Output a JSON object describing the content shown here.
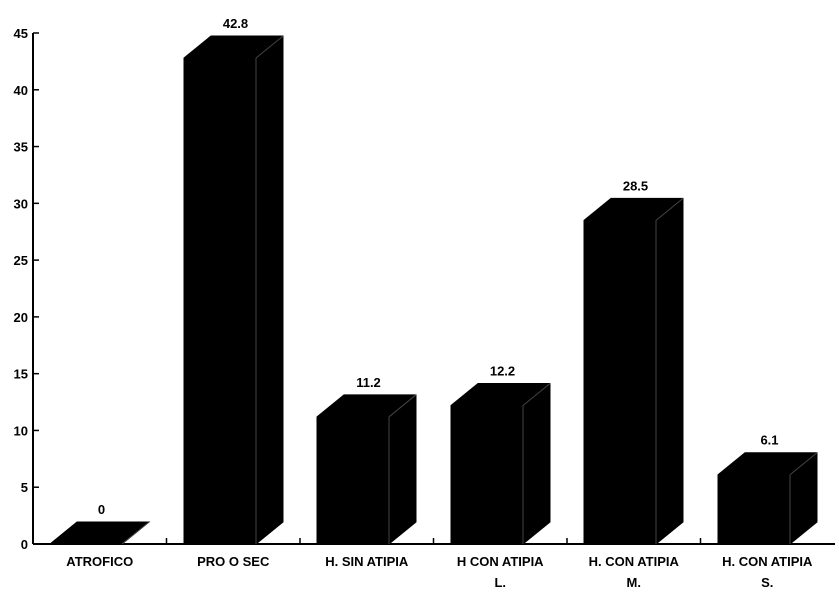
{
  "chart_data": {
    "type": "bar",
    "categories": [
      [
        "ATROFICO"
      ],
      [
        "PRO O SEC"
      ],
      [
        "H. SIN ATIPIA"
      ],
      [
        "H CON ATIPIA",
        "L."
      ],
      [
        "H. CON ATIPIA",
        "M."
      ],
      [
        "H. CON ATIPIA",
        "S."
      ]
    ],
    "values": [
      0,
      42.8,
      11.2,
      12.2,
      28.5,
      6.1
    ],
    "data_labels": [
      "0",
      "42.8",
      "11.2",
      "12.2",
      "28.5",
      "6.1"
    ],
    "ylim": [
      0,
      45
    ],
    "yticks": [
      0,
      5,
      10,
      15,
      20,
      25,
      30,
      35,
      40,
      45
    ],
    "grid": false,
    "style": "3d",
    "colors": {
      "bar": "#000000",
      "axis": "#000000",
      "background": "#ffffff"
    }
  }
}
